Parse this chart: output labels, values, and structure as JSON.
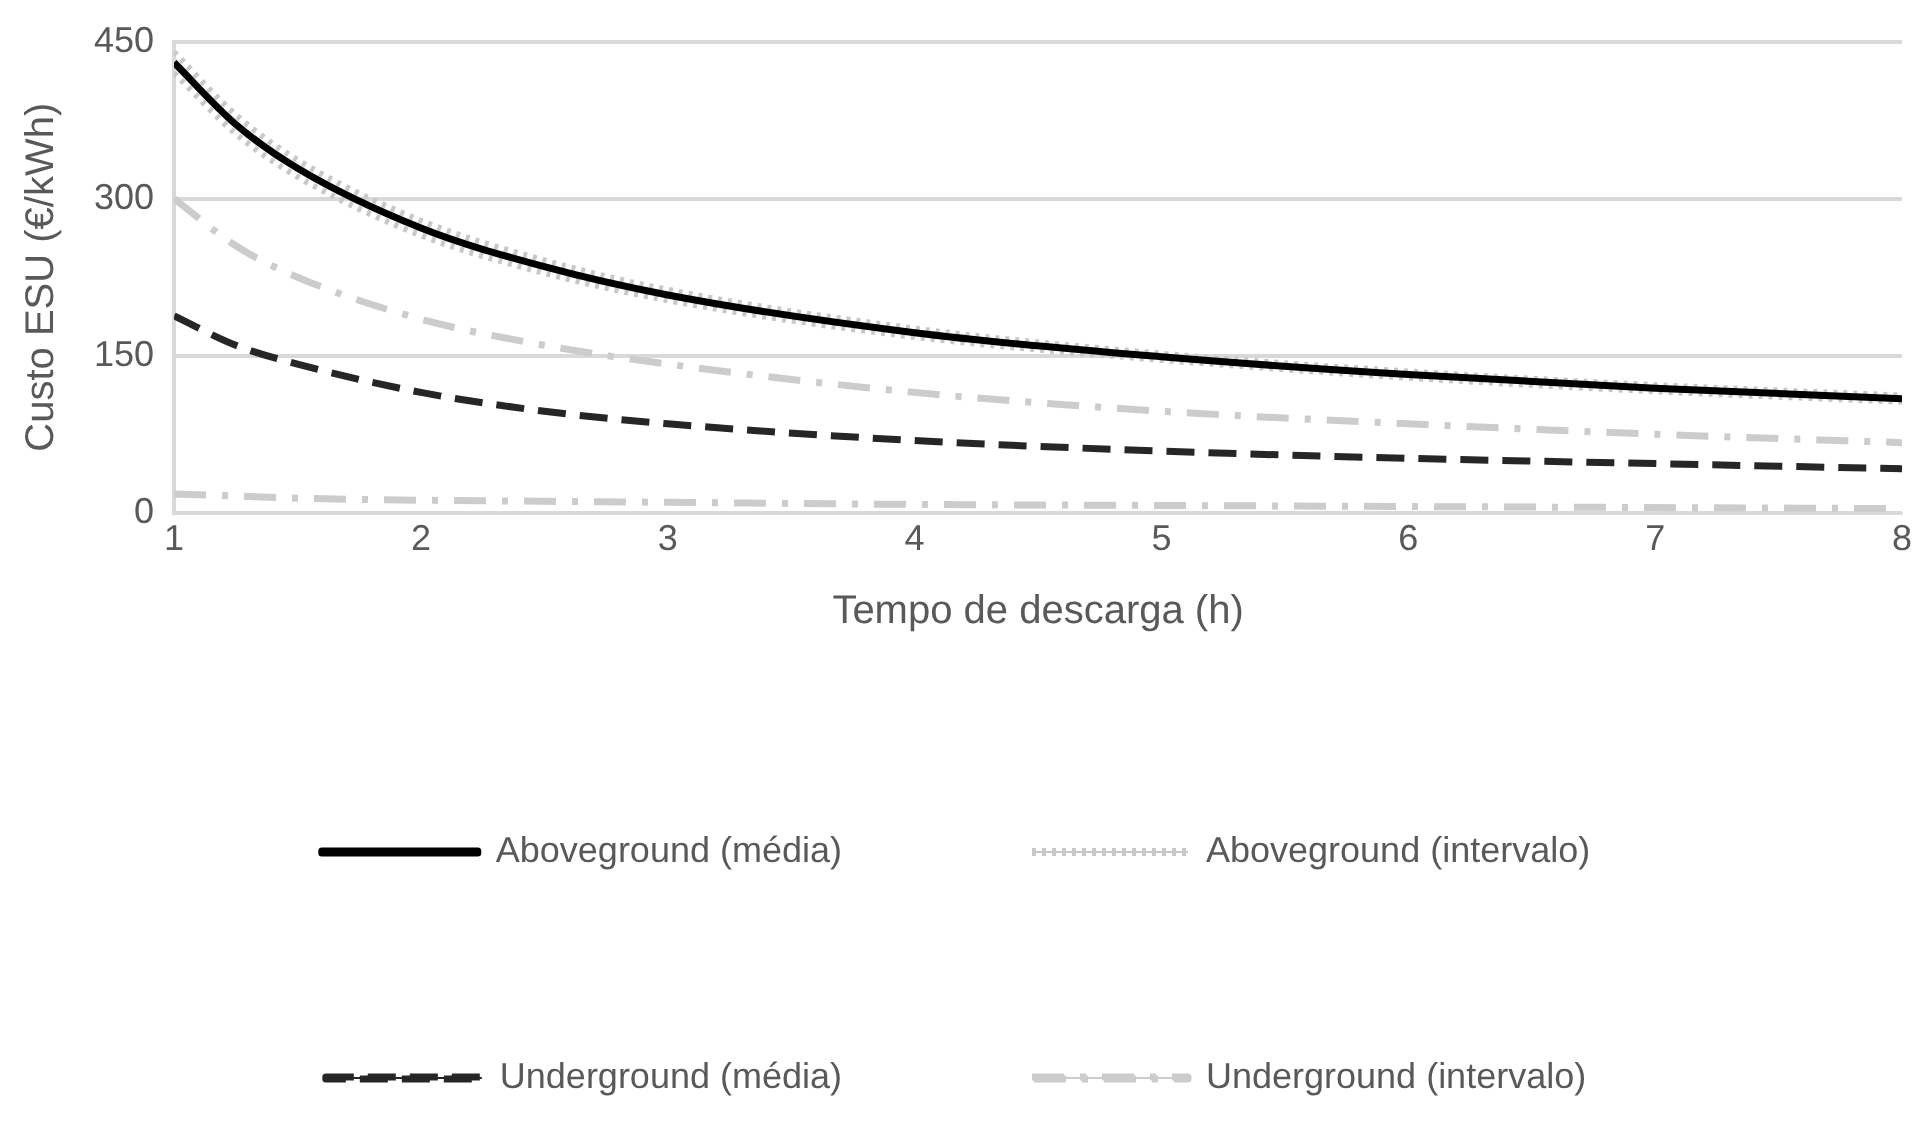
{
  "chart_data": {
    "type": "line",
    "xlabel": "Tempo de descarga (h)",
    "ylabel": "Custo ESU (€/kWh)",
    "x": [
      1,
      1.25,
      1.5,
      2,
      2.5,
      3,
      4,
      5,
      6,
      7,
      8
    ],
    "xlim": [
      1,
      8
    ],
    "xticks": [
      1,
      2,
      3,
      4,
      5,
      6,
      7,
      8
    ],
    "ylim": [
      0,
      450
    ],
    "yticks": [
      0,
      150,
      300,
      450
    ],
    "grid": "y",
    "legend": "bottom",
    "marker": "none",
    "series": [
      {
        "name": "Aboveground (média)",
        "color": "#000000",
        "line_style": "solid",
        "values": [
          430,
          371,
          329,
          272,
          235,
          208,
          172,
          149,
          132,
          119,
          109
        ]
      },
      {
        "name": "Aboveground (intervalo)",
        "color": "#c8c8c8",
        "line_style": "dotted",
        "values": [
          440,
          380,
          337,
          279,
          241,
          213,
          176,
          152,
          135,
          122,
          112
        ]
      },
      {
        "color": "#c8c8c8",
        "line_style": "dotted",
        "values": [
          420,
          362,
          321,
          265,
          229,
          203,
          168,
          146,
          129,
          116,
          106
        ]
      },
      {
        "name": "Underground (média)",
        "color": "#262626",
        "line_style": "dashed",
        "values": [
          188,
          160,
          142,
          115,
          97,
          85,
          69,
          59,
          52,
          47,
          42
        ]
      },
      {
        "name": "Underground (intervalo)",
        "color": "#cccccc",
        "line_style": "dashdot",
        "values": [
          300,
          255,
          225,
          185,
          160,
          142,
          115,
          97,
          85,
          75,
          67
        ]
      },
      {
        "color": "#cccccc",
        "line_style": "dashdot",
        "values": [
          18,
          16,
          14,
          12,
          11,
          10,
          8,
          7,
          6,
          5,
          4
        ]
      }
    ]
  }
}
